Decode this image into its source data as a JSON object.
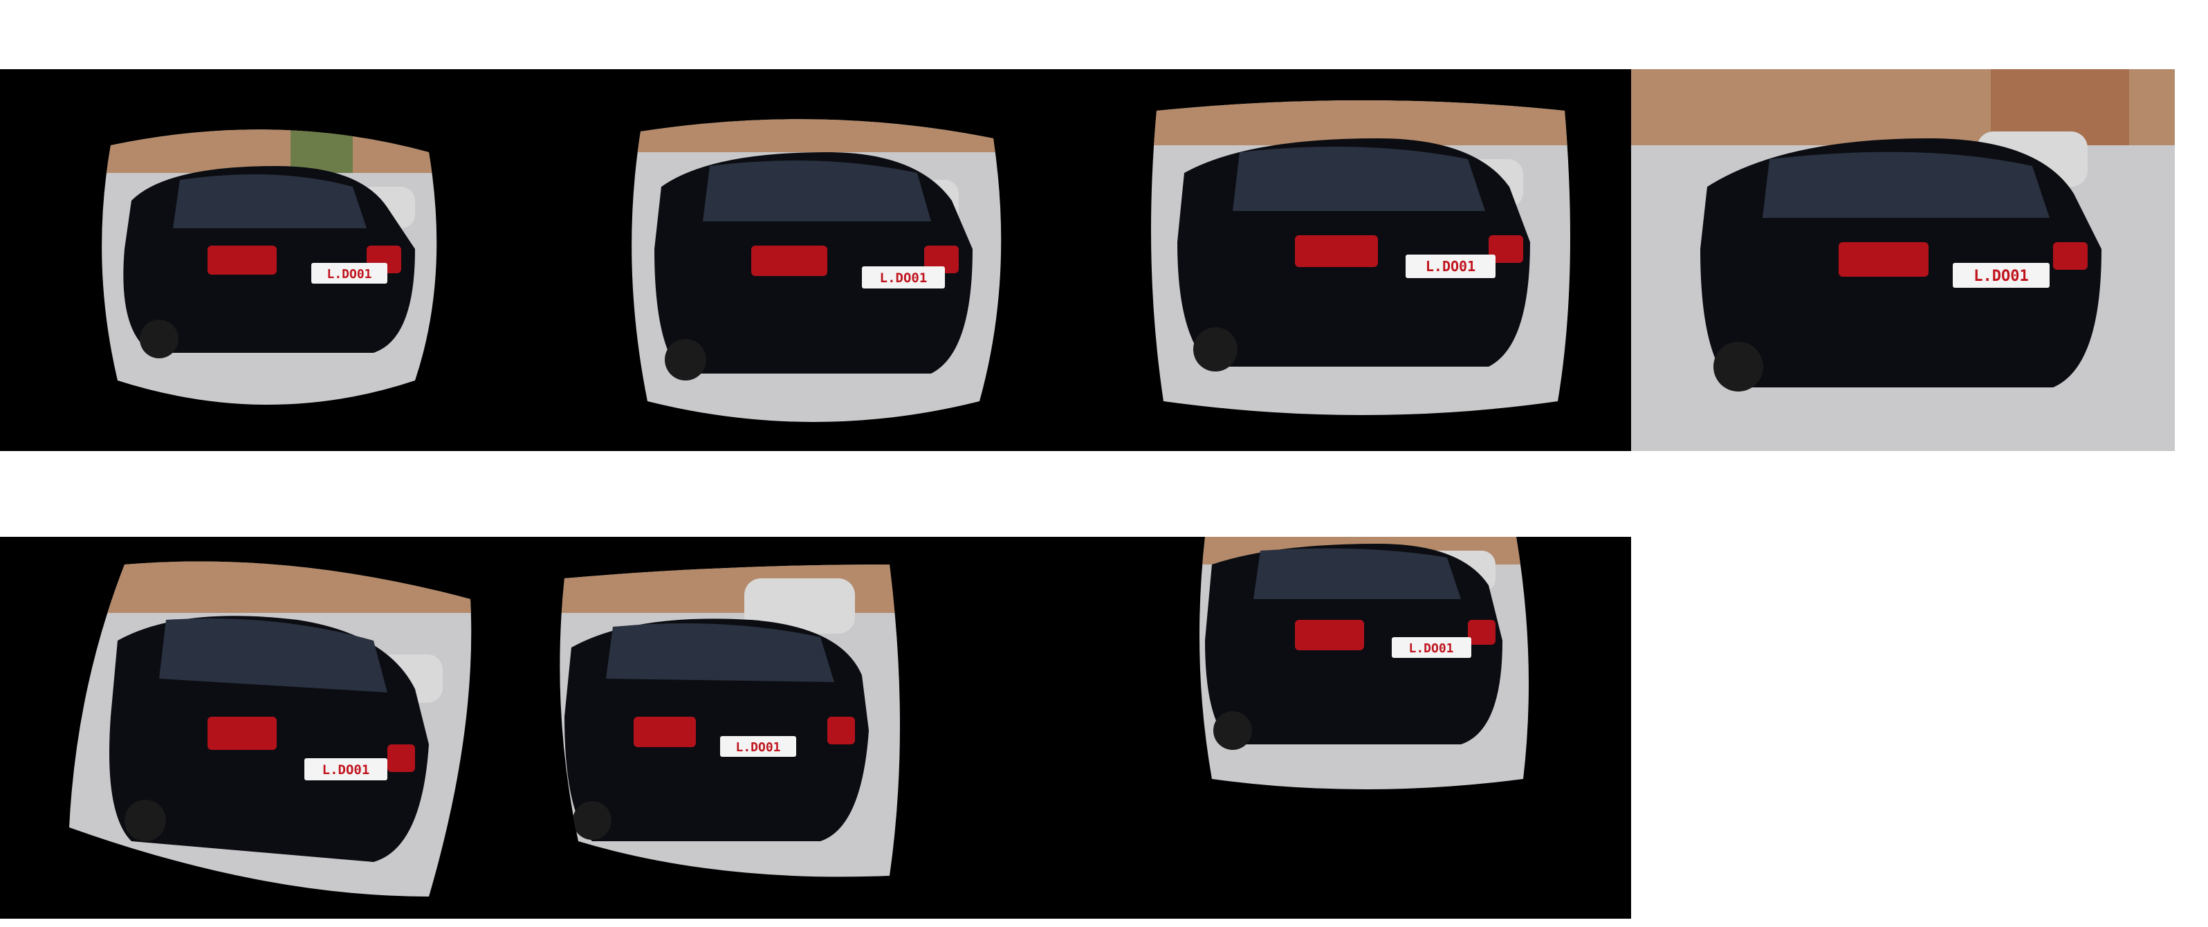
{
  "tiles": [
    {
      "id": 1,
      "variant": "fisheye-strong",
      "plate": "L.DO01"
    },
    {
      "id": 2,
      "variant": "fisheye-medium",
      "plate": "L.DO01"
    },
    {
      "id": 3,
      "variant": "fisheye-light",
      "plate": "L.DO01"
    },
    {
      "id": 4,
      "variant": "original",
      "plate": "L.DO01"
    },
    {
      "id": 5,
      "variant": "fisheye-rotated-left",
      "plate": "L.DO01"
    },
    {
      "id": 6,
      "variant": "fisheye-shifted",
      "plate": "L.DO01"
    },
    {
      "id": 7,
      "variant": "fisheye-cropped-top",
      "plate": "L.DO01"
    }
  ],
  "colors": {
    "background": "#ffffff",
    "tile_background": "#000000",
    "car_body": "#0b0d12",
    "taillight": "#b3121b",
    "plate_text": "#c0141e",
    "pavement": "#c9c9cc",
    "sky_building": "#b48a6a"
  },
  "icons": [
    "car-photo"
  ]
}
